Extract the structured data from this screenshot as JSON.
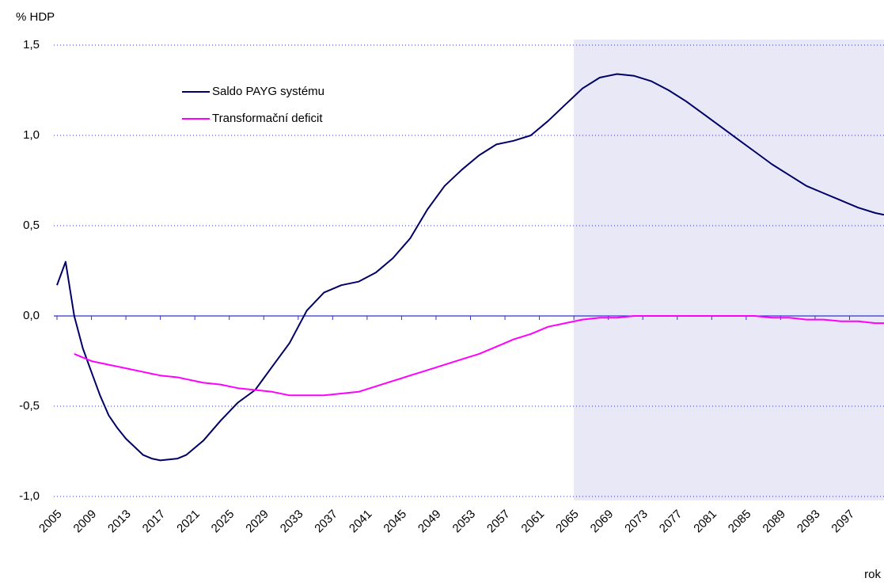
{
  "chart_data": {
    "type": "line",
    "y_label": "% HDP",
    "x_label": "rok",
    "x": [
      2005,
      2006,
      2007,
      2008,
      2009,
      2010,
      2011,
      2012,
      2013,
      2015,
      2016,
      2017,
      2019,
      2020,
      2022,
      2024,
      2026,
      2028,
      2030,
      2032,
      2034,
      2036,
      2038,
      2040,
      2042,
      2044,
      2046,
      2048,
      2050,
      2052,
      2054,
      2056,
      2058,
      2060,
      2062,
      2064,
      2066,
      2068,
      2070,
      2072,
      2074,
      2076,
      2078,
      2080,
      2082,
      2084,
      2086,
      2088,
      2090,
      2092,
      2094,
      2096,
      2098,
      2100,
      2101
    ],
    "series": [
      {
        "name": "Saldo PAYG systému",
        "color": "#000066",
        "values": [
          0.17,
          0.3,
          0.0,
          -0.18,
          -0.31,
          -0.44,
          -0.55,
          -0.62,
          -0.68,
          -0.77,
          -0.79,
          -0.8,
          -0.79,
          -0.77,
          -0.69,
          -0.58,
          -0.48,
          -0.41,
          -0.28,
          -0.15,
          0.03,
          0.13,
          0.17,
          0.19,
          0.24,
          0.32,
          0.43,
          0.59,
          0.72,
          0.81,
          0.89,
          0.95,
          0.97,
          1.0,
          1.08,
          1.17,
          1.26,
          1.32,
          1.34,
          1.33,
          1.3,
          1.25,
          1.19,
          1.12,
          1.05,
          0.98,
          0.91,
          0.84,
          0.78,
          0.72,
          0.68,
          0.64,
          0.6,
          0.57,
          0.56
        ]
      },
      {
        "name": "Transformační deficit",
        "color": "#ff00ff",
        "values": [
          null,
          null,
          -0.21,
          -0.23,
          -0.25,
          -0.26,
          -0.27,
          -0.28,
          -0.29,
          -0.31,
          -0.32,
          -0.33,
          -0.34,
          -0.35,
          -0.37,
          -0.38,
          -0.4,
          -0.41,
          -0.42,
          -0.44,
          -0.44,
          -0.44,
          -0.43,
          -0.42,
          -0.39,
          -0.36,
          -0.33,
          -0.3,
          -0.27,
          -0.24,
          -0.21,
          -0.17,
          -0.13,
          -0.1,
          -0.06,
          -0.04,
          -0.02,
          -0.01,
          -0.01,
          0.0,
          0.0,
          0.0,
          0.0,
          0.0,
          0.0,
          0.0,
          0.0,
          -0.01,
          -0.01,
          -0.02,
          -0.02,
          -0.03,
          -0.03,
          -0.04,
          -0.04
        ]
      }
    ],
    "xlim": [
      2005,
      2101
    ],
    "xticks": [
      2005,
      2009,
      2013,
      2017,
      2021,
      2025,
      2029,
      2033,
      2037,
      2041,
      2045,
      2049,
      2053,
      2057,
      2061,
      2065,
      2069,
      2073,
      2077,
      2081,
      2085,
      2089,
      2093,
      2097
    ],
    "ylim": [
      -1.0,
      1.5
    ],
    "yticks": [
      {
        "value": -1.0,
        "label": "-1,0"
      },
      {
        "value": -0.5,
        "label": "-0,5"
      },
      {
        "value": 0,
        "label": "0,0"
      },
      {
        "value": 0.5,
        "label": "0,5"
      },
      {
        "value": 1.0,
        "label": "1,0"
      },
      {
        "value": 1.5,
        "label": "1,5"
      }
    ],
    "grid": true,
    "highlight_xlim": [
      2065,
      2101
    ],
    "highlight_color": "#e8e8f6",
    "legend": "upper left"
  }
}
